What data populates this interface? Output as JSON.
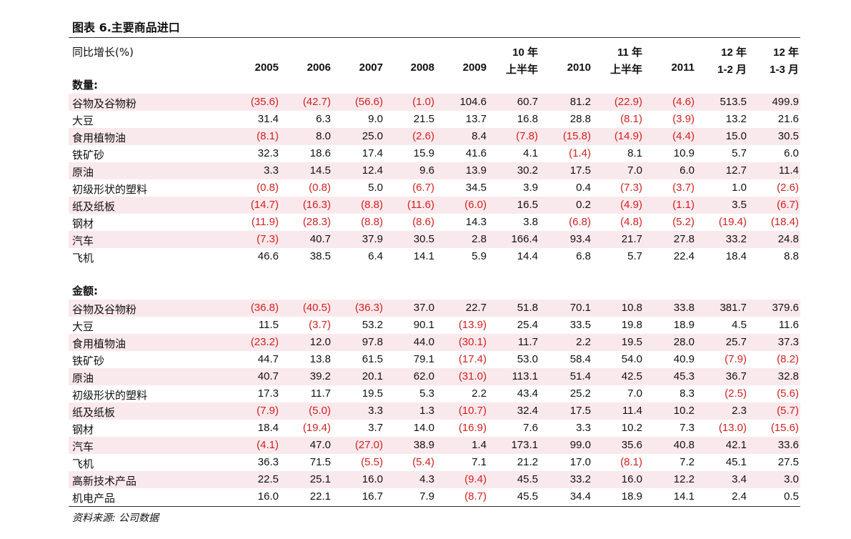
{
  "title": "图表 6.主要商品进口",
  "unit_label": "同比增长(%)",
  "neg_color": "#d21f1f",
  "shade_color": "#fae9ec",
  "columns": [
    {
      "l1": "",
      "l2": "2005"
    },
    {
      "l1": "",
      "l2": "2006"
    },
    {
      "l1": "",
      "l2": "2007"
    },
    {
      "l1": "",
      "l2": "2008"
    },
    {
      "l1": "",
      "l2": "2009"
    },
    {
      "l1": "10 年",
      "l2": "上半年"
    },
    {
      "l1": "",
      "l2": "2010"
    },
    {
      "l1": "11 年",
      "l2": "上半年"
    },
    {
      "l1": "",
      "l2": "2011"
    },
    {
      "l1": "12 年",
      "l2": "1-2 月"
    },
    {
      "l1": "12 年",
      "l2": "1-3 月"
    }
  ],
  "sections": [
    {
      "label": "数量:",
      "rows": [
        {
          "label": "谷物及谷物粉",
          "values": [
            "(35.6)",
            "(42.7)",
            "(56.6)",
            "(1.0)",
            "104.6",
            "60.7",
            "81.2",
            "(22.9)",
            "(4.6)",
            "513.5",
            "499.9"
          ]
        },
        {
          "label": "大豆",
          "values": [
            "31.4",
            "6.3",
            "9.0",
            "21.5",
            "13.7",
            "16.8",
            "28.8",
            "(8.1)",
            "(3.9)",
            "13.2",
            "21.6"
          ]
        },
        {
          "label": "食用植物油",
          "values": [
            "(8.1)",
            "8.0",
            "25.0",
            "(2.6)",
            "8.4",
            "(7.8)",
            "(15.8)",
            "(14.9)",
            "(4.4)",
            "15.0",
            "30.5"
          ]
        },
        {
          "label": "铁矿砂",
          "values": [
            "32.3",
            "18.6",
            "17.4",
            "15.9",
            "41.6",
            "4.1",
            "(1.4)",
            "8.1",
            "10.9",
            "5.7",
            "6.0"
          ]
        },
        {
          "label": "原油",
          "values": [
            "3.3",
            "14.5",
            "12.4",
            "9.6",
            "13.9",
            "30.2",
            "17.5",
            "7.0",
            "6.0",
            "12.7",
            "11.4"
          ]
        },
        {
          "label": "初级形状的塑料",
          "values": [
            "(0.8)",
            "(0.8)",
            "5.0",
            "(6.7)",
            "34.5",
            "3.9",
            "0.4",
            "(7.3)",
            "(3.7)",
            "1.0",
            "(2.6)"
          ]
        },
        {
          "label": "纸及纸板",
          "values": [
            "(14.7)",
            "(16.3)",
            "(8.8)",
            "(11.6)",
            "(6.0)",
            "16.5",
            "0.2",
            "(4.9)",
            "(1.1)",
            "3.5",
            "(6.7)"
          ]
        },
        {
          "label": "钢材",
          "values": [
            "(11.9)",
            "(28.3)",
            "(8.8)",
            "(8.6)",
            "14.3",
            "3.8",
            "(6.8)",
            "(4.8)",
            "(5.2)",
            "(19.4)",
            "(18.4)"
          ]
        },
        {
          "label": "汽车",
          "values": [
            "(7.3)",
            "40.7",
            "37.9",
            "30.5",
            "2.8",
            "166.4",
            "93.4",
            "21.7",
            "27.8",
            "33.2",
            "24.8"
          ]
        },
        {
          "label": "飞机",
          "values": [
            "46.6",
            "38.5",
            "6.4",
            "14.1",
            "5.9",
            "14.4",
            "6.8",
            "5.7",
            "22.4",
            "18.4",
            "8.8"
          ]
        }
      ]
    },
    {
      "label": "金额:",
      "rows": [
        {
          "label": "谷物及谷物粉",
          "values": [
            "(36.8)",
            "(40.5)",
            "(36.3)",
            "37.0",
            "22.7",
            "51.8",
            "70.1",
            "10.8",
            "33.8",
            "381.7",
            "379.6"
          ]
        },
        {
          "label": "大豆",
          "values": [
            "11.5",
            "(3.7)",
            "53.2",
            "90.1",
            "(13.9)",
            "25.4",
            "33.5",
            "19.8",
            "18.9",
            "4.5",
            "11.6"
          ]
        },
        {
          "label": "食用植物油",
          "values": [
            "(23.2)",
            "12.0",
            "97.8",
            "44.0",
            "(30.1)",
            "11.7",
            "2.2",
            "19.5",
            "28.0",
            "25.7",
            "37.3"
          ]
        },
        {
          "label": "铁矿砂",
          "values": [
            "44.7",
            "13.8",
            "61.5",
            "79.1",
            "(17.4)",
            "53.0",
            "58.4",
            "54.0",
            "40.9",
            "(7.9)",
            "(8.2)"
          ]
        },
        {
          "label": "原油",
          "values": [
            "40.7",
            "39.2",
            "20.1",
            "62.0",
            "(31.0)",
            "113.1",
            "51.4",
            "42.5",
            "45.3",
            "36.7",
            "32.8"
          ]
        },
        {
          "label": "初级形状的塑料",
          "values": [
            "17.3",
            "11.7",
            "19.5",
            "5.3",
            "2.2",
            "43.4",
            "25.2",
            "7.0",
            "8.3",
            "(2.5)",
            "(5.6)"
          ]
        },
        {
          "label": "纸及纸板",
          "values": [
            "(7.9)",
            "(5.0)",
            "3.3",
            "1.3",
            "(10.7)",
            "32.4",
            "17.5",
            "11.4",
            "10.2",
            "2.3",
            "(5.7)"
          ]
        },
        {
          "label": "钢材",
          "values": [
            "18.4",
            "(19.4)",
            "3.7",
            "14.0",
            "(16.9)",
            "7.6",
            "3.3",
            "10.2",
            "7.3",
            "(13.0)",
            "(15.6)"
          ]
        },
        {
          "label": "汽车",
          "values": [
            "(4.1)",
            "47.0",
            "(27.0)",
            "38.9",
            "1.4",
            "173.1",
            "99.0",
            "35.6",
            "40.8",
            "42.1",
            "33.6"
          ]
        },
        {
          "label": "飞机",
          "values": [
            "36.3",
            "71.5",
            "(5.5)",
            "(5.4)",
            "7.1",
            "21.2",
            "17.0",
            "(8.1)",
            "7.2",
            "45.1",
            "27.5"
          ]
        },
        {
          "label": "高新技术产品",
          "values": [
            "22.5",
            "25.1",
            "16.0",
            "4.3",
            "(9.4)",
            "45.5",
            "33.2",
            "16.0",
            "12.2",
            "3.4",
            "3.0"
          ]
        },
        {
          "label": "机电产品",
          "values": [
            "16.0",
            "22.1",
            "16.7",
            "7.9",
            "(8.7)",
            "45.5",
            "34.4",
            "18.9",
            "14.1",
            "2.4",
            "0.5"
          ]
        }
      ]
    }
  ],
  "source": "资料来源: 公司数据"
}
